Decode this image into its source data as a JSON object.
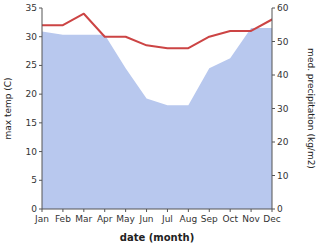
{
  "chart_data": {
    "type": "line",
    "xlabel": "date (month)",
    "ylabel": "max temp (C)",
    "y2label": "med. precipitation (kg/m2)",
    "categories": [
      "Jan",
      "Feb",
      "Mar",
      "Apr",
      "May",
      "Jun",
      "Jul",
      "Aug",
      "Sep",
      "Oct",
      "Nov",
      "Dec"
    ],
    "series": [
      {
        "type": "area",
        "axis": "y2",
        "color": "#b8c8ee",
        "values": [
          53,
          52,
          52,
          52,
          42,
          33,
          31,
          31,
          42,
          45,
          54,
          54
        ]
      },
      {
        "type": "line",
        "color": "#cc4444",
        "values": [
          32.0,
          32.0,
          34.0,
          30.0,
          30.0,
          28.5,
          28.0,
          28.0,
          30.0,
          31.0,
          31.0,
          33.0
        ]
      }
    ],
    "ylim": [
      0,
      35
    ],
    "yticks": [
      0,
      5,
      10,
      15,
      20,
      25,
      30,
      35
    ],
    "y2lim": [
      0,
      60
    ],
    "y2ticks": [
      0,
      10,
      20,
      30,
      40,
      50,
      60
    ],
    "grid": false
  }
}
